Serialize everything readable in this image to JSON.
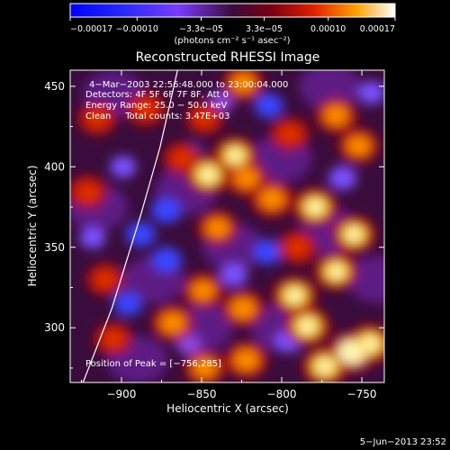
{
  "chart_data": {
    "type": "heatmap",
    "title": "Reconstructed RHESSI Image",
    "xlabel": "Heliocentric X (arcsec)",
    "ylabel": "Heliocentric Y (arcsec)",
    "xlim": [
      -932,
      -736
    ],
    "ylim": [
      266,
      460
    ],
    "x_ticks": [
      -900,
      -850,
      -800,
      -750
    ],
    "x_tick_labels": [
      "−900",
      "−850",
      "−800",
      "−750"
    ],
    "y_ticks": [
      300,
      350,
      400,
      450
    ],
    "y_tick_labels": [
      "300",
      "350",
      "400",
      "450"
    ],
    "colorbar": {
      "range": [
        -0.00017,
        0.00017
      ],
      "ticks": [
        -0.00017,
        -0.0001,
        -3.3e-05,
        3.3e-05,
        0.0001,
        0.00017
      ],
      "tick_labels": [
        "−0.00017",
        "−0.00010",
        "−3.3e−05",
        "3.3e−05",
        "0.00010",
        "0.00017"
      ],
      "unit_label": "(photons cm⁻² s⁻¹ asec⁻²)"
    },
    "annotations": {
      "time_range": "4−Mar−2003 22:56:48.000 to 23:00:04.000",
      "detectors": "Detectors: 4F 5F 6F 7F 8F, Att 0",
      "energy_range": "Energy Range: 25.0 − 50.0 keV",
      "method_counts": "Clean     Total counts: 3.47E+03",
      "peak_position": "Position of Peak = [−756,285]"
    },
    "bright_sources": [
      {
        "x": -885,
        "y": 436,
        "level": 0.55
      },
      {
        "x": -848,
        "y": 430,
        "level": 0.45
      },
      {
        "x": -824,
        "y": 452,
        "level": 0.6
      },
      {
        "x": -829,
        "y": 407,
        "level": 0.75
      },
      {
        "x": -846,
        "y": 395,
        "level": 0.85
      },
      {
        "x": -822,
        "y": 393,
        "level": 0.65
      },
      {
        "x": -795,
        "y": 420,
        "level": 0.55
      },
      {
        "x": -766,
        "y": 432,
        "level": 0.65
      },
      {
        "x": -752,
        "y": 413,
        "level": 0.6
      },
      {
        "x": -806,
        "y": 380,
        "level": 0.7
      },
      {
        "x": -779,
        "y": 375,
        "level": 0.8
      },
      {
        "x": -840,
        "y": 362,
        "level": 0.6
      },
      {
        "x": -755,
        "y": 358,
        "level": 0.75
      },
      {
        "x": -790,
        "y": 350,
        "level": 0.55
      },
      {
        "x": -849,
        "y": 323,
        "level": 0.6
      },
      {
        "x": -868,
        "y": 303,
        "level": 0.7
      },
      {
        "x": -824,
        "y": 312,
        "level": 0.7
      },
      {
        "x": -792,
        "y": 320,
        "level": 0.8
      },
      {
        "x": -766,
        "y": 335,
        "level": 0.75
      },
      {
        "x": -784,
        "y": 301,
        "level": 0.85
      },
      {
        "x": -756,
        "y": 285,
        "level": 1.0
      },
      {
        "x": -745,
        "y": 290,
        "level": 0.85
      },
      {
        "x": -773,
        "y": 276,
        "level": 0.85
      },
      {
        "x": -822,
        "y": 280,
        "level": 0.7
      },
      {
        "x": -848,
        "y": 275,
        "level": 0.6
      },
      {
        "x": -921,
        "y": 384,
        "level": 0.55
      },
      {
        "x": -915,
        "y": 430,
        "level": 0.5
      },
      {
        "x": -910,
        "y": 330,
        "level": 0.45
      },
      {
        "x": -905,
        "y": 293,
        "level": 0.5
      },
      {
        "x": -862,
        "y": 405,
        "level": 0.5
      }
    ],
    "dim_sources": [
      {
        "x": -872,
        "y": 373,
        "level": -0.7
      },
      {
        "x": -888,
        "y": 358,
        "level": -0.65
      },
      {
        "x": -872,
        "y": 342,
        "level": -0.7
      },
      {
        "x": -896,
        "y": 315,
        "level": -0.6
      },
      {
        "x": -808,
        "y": 438,
        "level": -0.6
      },
      {
        "x": -858,
        "y": 408,
        "level": -0.5
      },
      {
        "x": -809,
        "y": 347,
        "level": -0.6
      },
      {
        "x": -830,
        "y": 333,
        "level": -0.55
      },
      {
        "x": -796,
        "y": 292,
        "level": -0.55
      },
      {
        "x": -762,
        "y": 393,
        "level": -0.55
      },
      {
        "x": -744,
        "y": 446,
        "level": -0.5
      },
      {
        "x": -899,
        "y": 400,
        "level": -0.45
      },
      {
        "x": -918,
        "y": 356,
        "level": -0.45
      },
      {
        "x": -838,
        "y": 440,
        "level": -0.4
      },
      {
        "x": -858,
        "y": 290,
        "level": -0.4
      }
    ],
    "solar_limb": [
      [
        -924,
        266
      ],
      [
        -906,
        312
      ],
      [
        -888,
        370
      ],
      [
        -876,
        412
      ],
      [
        -865,
        460
      ]
    ],
    "grid": false,
    "legend": "none"
  },
  "footer": {
    "date": "5−Jun−2013 23:52"
  }
}
